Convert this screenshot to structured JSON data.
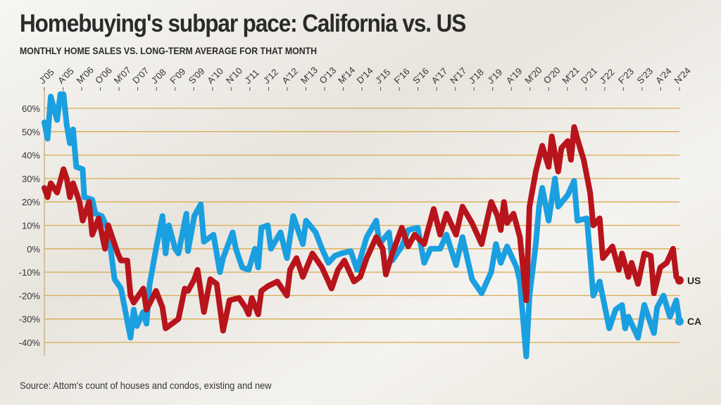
{
  "title": "Homebuying's subpar pace: California vs. US",
  "subtitle": "MONTHLY HOME SALES VS. LONG-TERM AVERAGE FOR THAT MONTH",
  "source": "Source: Attom's count of houses and condos, existing and new",
  "colors": {
    "US": "#b8141c",
    "CA": "#1a9fe0",
    "grid": "#d8aa52"
  },
  "chart_data": {
    "type": "line",
    "title": "Homebuying's subpar pace: California vs. US",
    "xlabel": "",
    "ylabel": "",
    "xlim": [
      2005.0,
      2024.9
    ],
    "ylim": [
      -40,
      60
    ],
    "yticks": [
      60,
      50,
      40,
      30,
      20,
      10,
      0,
      -10,
      -20,
      -30,
      -40
    ],
    "ytick_labels": [
      "60%",
      "50%",
      "40%",
      "30%",
      "20%",
      "10%",
      "0%",
      "-10%",
      "-20%",
      "-30%",
      "-40%"
    ],
    "xtick_labels": [
      "J'05",
      "A'05",
      "M'06",
      "O'06",
      "M'07",
      "D'07",
      "J'08",
      "F'09",
      "S'09",
      "A'10",
      "N'10",
      "J'11",
      "J'12",
      "A'12",
      "M'13",
      "O'13",
      "M'14",
      "D'14",
      "J'15",
      "F'16",
      "S'16",
      "A'17",
      "N'17",
      "J'18",
      "J'19",
      "A'19",
      "M'20",
      "O'20",
      "M'21",
      "D'21",
      "J'22",
      "F'23",
      "S'23",
      "A'24",
      "N'24"
    ],
    "grid": true,
    "legend": "end-of-line labels",
    "series": [
      {
        "name": "US",
        "points": [
          [
            2005.0,
            26
          ],
          [
            2005.1,
            22
          ],
          [
            2005.2,
            28
          ],
          [
            2005.4,
            24
          ],
          [
            2005.6,
            34
          ],
          [
            2005.7,
            30
          ],
          [
            2005.8,
            22
          ],
          [
            2005.9,
            28
          ],
          [
            2006.1,
            20
          ],
          [
            2006.2,
            12
          ],
          [
            2006.4,
            20
          ],
          [
            2006.5,
            6
          ],
          [
            2006.7,
            13
          ],
          [
            2006.9,
            0
          ],
          [
            2007.0,
            10
          ],
          [
            2007.3,
            -2
          ],
          [
            2007.4,
            -5
          ],
          [
            2007.6,
            -5
          ],
          [
            2007.7,
            -20
          ],
          [
            2007.8,
            -23
          ],
          [
            2008.1,
            -17
          ],
          [
            2008.2,
            -26
          ],
          [
            2008.5,
            -18
          ],
          [
            2008.7,
            -25
          ],
          [
            2008.8,
            -34
          ],
          [
            2009.0,
            -32
          ],
          [
            2009.2,
            -30
          ],
          [
            2009.4,
            -17
          ],
          [
            2009.5,
            -18
          ],
          [
            2009.7,
            -13
          ],
          [
            2009.8,
            -9
          ],
          [
            2010.0,
            -27
          ],
          [
            2010.2,
            -13
          ],
          [
            2010.4,
            -15
          ],
          [
            2010.6,
            -35
          ],
          [
            2010.8,
            -22
          ],
          [
            2011.1,
            -21
          ],
          [
            2011.3,
            -25
          ],
          [
            2011.4,
            -28
          ],
          [
            2011.5,
            -21
          ],
          [
            2011.7,
            -28
          ],
          [
            2011.8,
            -18
          ],
          [
            2012.0,
            -16
          ],
          [
            2012.3,
            -14
          ],
          [
            2012.6,
            -20
          ],
          [
            2012.7,
            -9
          ],
          [
            2012.9,
            -4
          ],
          [
            2013.1,
            -12
          ],
          [
            2013.4,
            -2
          ],
          [
            2013.7,
            -8
          ],
          [
            2014.0,
            -17
          ],
          [
            2014.2,
            -9
          ],
          [
            2014.4,
            -5
          ],
          [
            2014.7,
            -14
          ],
          [
            2014.9,
            -12
          ],
          [
            2015.1,
            -4
          ],
          [
            2015.4,
            5
          ],
          [
            2015.6,
            0
          ],
          [
            2015.7,
            -11
          ],
          [
            2015.9,
            -2
          ],
          [
            2016.2,
            9
          ],
          [
            2016.4,
            1
          ],
          [
            2016.6,
            6
          ],
          [
            2016.9,
            2
          ],
          [
            2017.2,
            17
          ],
          [
            2017.4,
            6
          ],
          [
            2017.6,
            15
          ],
          [
            2017.9,
            6
          ],
          [
            2018.1,
            18
          ],
          [
            2018.4,
            11
          ],
          [
            2018.7,
            2
          ],
          [
            2019.0,
            20
          ],
          [
            2019.2,
            14
          ],
          [
            2019.3,
            8
          ],
          [
            2019.4,
            20
          ],
          [
            2019.5,
            11
          ],
          [
            2019.7,
            15
          ],
          [
            2019.9,
            5
          ],
          [
            2020.1,
            -22
          ],
          [
            2020.2,
            18
          ],
          [
            2020.4,
            33
          ],
          [
            2020.6,
            44
          ],
          [
            2020.8,
            35
          ],
          [
            2020.9,
            48
          ],
          [
            2021.1,
            33
          ],
          [
            2021.2,
            43
          ],
          [
            2021.4,
            46
          ],
          [
            2021.5,
            38
          ],
          [
            2021.6,
            52
          ],
          [
            2021.7,
            47
          ],
          [
            2021.9,
            38
          ],
          [
            2022.1,
            24
          ],
          [
            2022.2,
            10
          ],
          [
            2022.4,
            13
          ],
          [
            2022.5,
            -4
          ],
          [
            2022.8,
            1
          ],
          [
            2023.0,
            -9
          ],
          [
            2023.1,
            -2
          ],
          [
            2023.3,
            -12
          ],
          [
            2023.4,
            -6
          ],
          [
            2023.6,
            -15
          ],
          [
            2023.8,
            -2
          ],
          [
            2024.0,
            -3
          ],
          [
            2024.1,
            -19
          ],
          [
            2024.3,
            -8
          ],
          [
            2024.5,
            -6
          ],
          [
            2024.7,
            0
          ],
          [
            2024.8,
            -12
          ],
          [
            2024.9,
            -13.5
          ]
        ]
      },
      {
        "name": "CA",
        "points": [
          [
            2005.0,
            54
          ],
          [
            2005.1,
            47
          ],
          [
            2005.2,
            65
          ],
          [
            2005.4,
            55
          ],
          [
            2005.5,
            66
          ],
          [
            2005.6,
            66
          ],
          [
            2005.7,
            53
          ],
          [
            2005.8,
            45
          ],
          [
            2005.9,
            51
          ],
          [
            2006.0,
            35
          ],
          [
            2006.2,
            34
          ],
          [
            2006.25,
            22
          ],
          [
            2006.5,
            21
          ],
          [
            2006.6,
            15
          ],
          [
            2006.8,
            14
          ],
          [
            2007.0,
            8
          ],
          [
            2007.2,
            -13
          ],
          [
            2007.4,
            -17
          ],
          [
            2007.7,
            -38
          ],
          [
            2007.8,
            -26
          ],
          [
            2007.9,
            -33
          ],
          [
            2008.1,
            -27
          ],
          [
            2008.2,
            -32
          ],
          [
            2008.3,
            -15
          ],
          [
            2008.5,
            0
          ],
          [
            2008.7,
            14
          ],
          [
            2008.8,
            -2
          ],
          [
            2008.9,
            10
          ],
          [
            2009.1,
            0
          ],
          [
            2009.2,
            -2
          ],
          [
            2009.45,
            15
          ],
          [
            2009.5,
            -1
          ],
          [
            2009.7,
            14
          ],
          [
            2009.9,
            19
          ],
          [
            2010.0,
            3
          ],
          [
            2010.3,
            6
          ],
          [
            2010.5,
            -10
          ],
          [
            2010.6,
            -4
          ],
          [
            2010.9,
            7
          ],
          [
            2011.0,
            0
          ],
          [
            2011.2,
            -8
          ],
          [
            2011.4,
            -9
          ],
          [
            2011.6,
            0
          ],
          [
            2011.7,
            -8
          ],
          [
            2011.8,
            9
          ],
          [
            2012.0,
            10
          ],
          [
            2012.1,
            0
          ],
          [
            2012.4,
            7
          ],
          [
            2012.6,
            -4
          ],
          [
            2012.8,
            14
          ],
          [
            2013.1,
            2
          ],
          [
            2013.2,
            12
          ],
          [
            2013.5,
            7
          ],
          [
            2013.7,
            0
          ],
          [
            2013.9,
            -6
          ],
          [
            2014.1,
            -3
          ],
          [
            2014.3,
            -2
          ],
          [
            2014.6,
            -1
          ],
          [
            2014.8,
            -9
          ],
          [
            2015.1,
            5
          ],
          [
            2015.4,
            12
          ],
          [
            2015.5,
            2
          ],
          [
            2015.8,
            7
          ],
          [
            2015.9,
            -5
          ],
          [
            2016.2,
            1
          ],
          [
            2016.4,
            8
          ],
          [
            2016.7,
            9
          ],
          [
            2016.9,
            -6
          ],
          [
            2017.1,
            0
          ],
          [
            2017.4,
            0
          ],
          [
            2017.6,
            6
          ],
          [
            2017.9,
            -7
          ],
          [
            2018.1,
            5
          ],
          [
            2018.4,
            -13
          ],
          [
            2018.7,
            -19
          ],
          [
            2018.9,
            -13
          ],
          [
            2019.0,
            -10
          ],
          [
            2019.15,
            2
          ],
          [
            2019.3,
            -6
          ],
          [
            2019.5,
            1
          ],
          [
            2019.8,
            -8
          ],
          [
            2019.9,
            -14
          ],
          [
            2020.1,
            -46
          ],
          [
            2020.2,
            -20
          ],
          [
            2020.4,
            2
          ],
          [
            2020.5,
            18
          ],
          [
            2020.6,
            26
          ],
          [
            2020.8,
            12
          ],
          [
            2021.0,
            30
          ],
          [
            2021.1,
            18
          ],
          [
            2021.4,
            23
          ],
          [
            2021.6,
            29
          ],
          [
            2021.7,
            12
          ],
          [
            2022.0,
            13
          ],
          [
            2022.2,
            -20
          ],
          [
            2022.4,
            -14
          ],
          [
            2022.7,
            -34
          ],
          [
            2022.9,
            -26
          ],
          [
            2023.1,
            -24
          ],
          [
            2023.2,
            -34
          ],
          [
            2023.3,
            -29
          ],
          [
            2023.6,
            -38
          ],
          [
            2023.8,
            -24
          ],
          [
            2024.1,
            -36
          ],
          [
            2024.2,
            -25
          ],
          [
            2024.4,
            -20
          ],
          [
            2024.6,
            -29
          ],
          [
            2024.8,
            -22
          ],
          [
            2024.9,
            -31
          ]
        ]
      }
    ]
  }
}
